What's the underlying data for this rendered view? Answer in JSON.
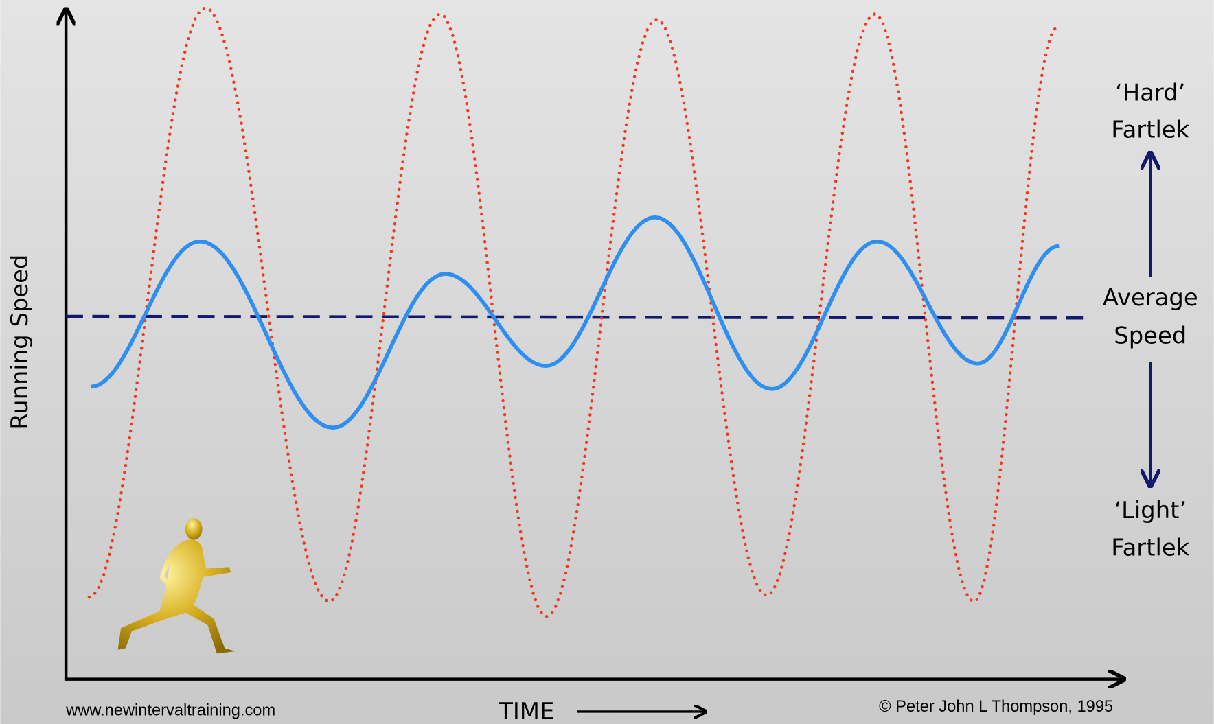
{
  "diagram": {
    "y_axis_label": "Running Speed",
    "x_axis_label": "TIME",
    "website": "www.newintervaltraining.com",
    "copyright": "© Peter John L Thompson, 1995",
    "hard": {
      "line1": "‘Hard’",
      "line2": "Fartlek"
    },
    "average": {
      "line1": "Average",
      "line2": "Speed"
    },
    "light": {
      "line1": "‘Light’",
      "line2": "Fartlek"
    }
  }
}
